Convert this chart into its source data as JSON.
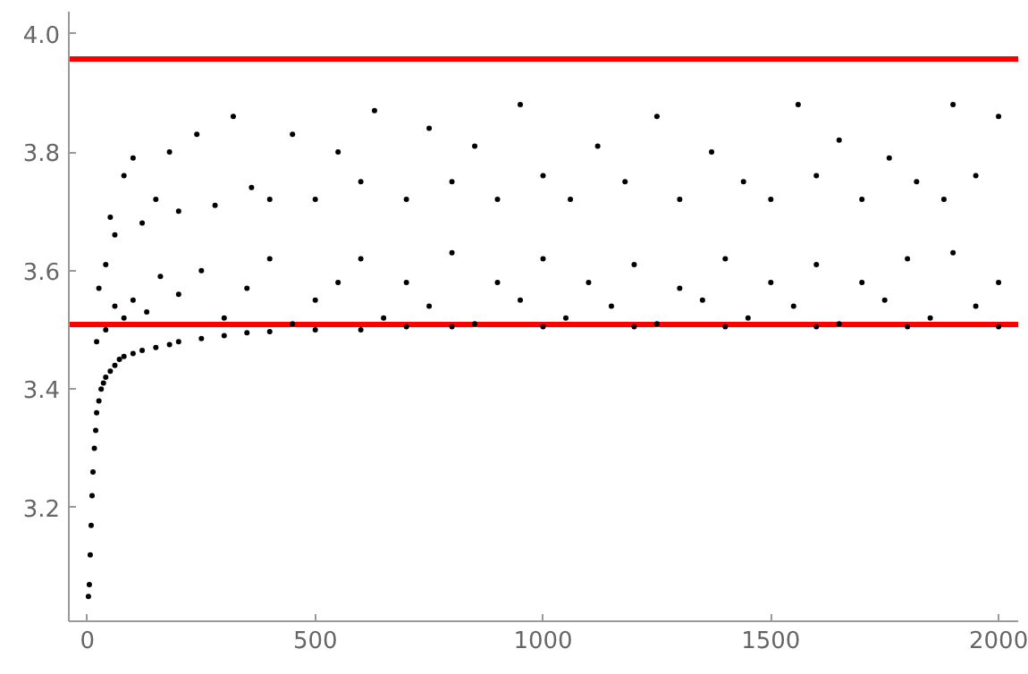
{
  "chart_data": {
    "type": "scatter",
    "marker": "circle",
    "grid": false,
    "xlim": [
      -41,
      2043
    ],
    "ylim": [
      3.008,
      4.037
    ],
    "xticks": [
      0,
      500,
      1000,
      1500,
      2000
    ],
    "yticks": [
      3.2,
      3.4,
      3.6,
      3.8,
      {
        "value": 4.0,
        "label": "4.0"
      }
    ],
    "ref_lines": [
      {
        "axis": "y",
        "value": 3.957,
        "color": "#ff0000"
      },
      {
        "axis": "y",
        "value": 3.509,
        "color": "#ff0000"
      }
    ],
    "series": [
      {
        "color": "#000000",
        "x": [
          2,
          4,
          6,
          8,
          10,
          12,
          15,
          18,
          20,
          25,
          30,
          35,
          40,
          50,
          60,
          70,
          80,
          100,
          120,
          150,
          180,
          200,
          250,
          300,
          350,
          400,
          500,
          600,
          700,
          800,
          1000,
          1200,
          1400,
          1600,
          1800,
          2000
        ],
        "values": [
          3.05,
          3.07,
          3.12,
          3.17,
          3.22,
          3.26,
          3.3,
          3.33,
          3.36,
          3.38,
          3.4,
          3.41,
          3.42,
          3.43,
          3.44,
          3.45,
          3.455,
          3.46,
          3.465,
          3.47,
          3.475,
          3.48,
          3.485,
          3.49,
          3.495,
          3.497,
          3.5,
          3.5,
          3.505,
          3.505,
          3.505,
          3.505,
          3.505,
          3.505,
          3.505,
          3.505
        ]
      },
      {
        "color": "#000000",
        "x": [
          20,
          40,
          60,
          80,
          100,
          130,
          160,
          200,
          250,
          300,
          350,
          400,
          450,
          500,
          550,
          600,
          650,
          700,
          750,
          800,
          850,
          900,
          950,
          1000,
          1050,
          1100,
          1150,
          1200,
          1250,
          1300,
          1350,
          1400,
          1450,
          1500,
          1550,
          1600,
          1650,
          1700,
          1750,
          1800,
          1850,
          1900,
          1950,
          2000
        ],
        "values": [
          3.48,
          3.5,
          3.54,
          3.52,
          3.55,
          3.53,
          3.59,
          3.56,
          3.6,
          3.52,
          3.57,
          3.62,
          3.51,
          3.55,
          3.58,
          3.62,
          3.52,
          3.58,
          3.54,
          3.63,
          3.51,
          3.58,
          3.55,
          3.62,
          3.52,
          3.58,
          3.54,
          3.61,
          3.51,
          3.57,
          3.55,
          3.62,
          3.52,
          3.58,
          3.54,
          3.61,
          3.51,
          3.58,
          3.55,
          3.62,
          3.52,
          3.63,
          3.54,
          3.58
        ]
      },
      {
        "color": "#000000",
        "x": [
          25,
          40,
          50,
          60,
          80,
          100,
          120,
          150,
          180,
          200,
          240,
          280,
          320,
          360,
          400,
          450,
          500,
          550,
          600,
          630,
          700,
          750,
          800,
          850,
          900,
          950,
          1000,
          1060,
          1120,
          1180,
          1250,
          1300,
          1370,
          1440,
          1500,
          1560,
          1600,
          1650,
          1700,
          1760,
          1820,
          1880,
          1900,
          1950,
          2000
        ],
        "values": [
          3.57,
          3.61,
          3.69,
          3.66,
          3.76,
          3.79,
          3.68,
          3.72,
          3.8,
          3.7,
          3.83,
          3.71,
          3.86,
          3.74,
          3.72,
          3.83,
          3.72,
          3.8,
          3.75,
          3.87,
          3.72,
          3.84,
          3.75,
          3.81,
          3.72,
          3.88,
          3.76,
          3.72,
          3.81,
          3.75,
          3.86,
          3.72,
          3.8,
          3.75,
          3.72,
          3.88,
          3.76,
          3.82,
          3.72,
          3.79,
          3.75,
          3.72,
          3.88,
          3.76,
          3.86
        ]
      }
    ]
  }
}
